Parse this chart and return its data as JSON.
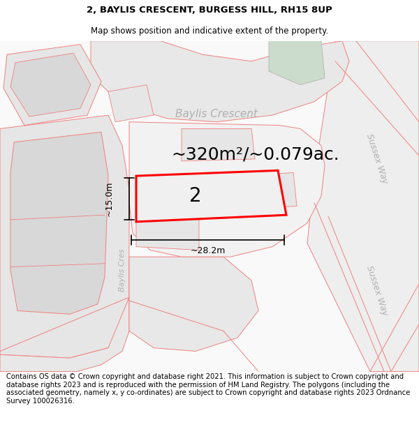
{
  "title_line1": "2, BAYLIS CRESCENT, BURGESS HILL, RH15 8UP",
  "title_line2": "Map shows position and indicative extent of the property.",
  "area_text": "~320m²/~0.079ac.",
  "width_label": "~28.2m",
  "height_label": "~15.0m",
  "number_label": "2",
  "street_label_crescent": "Baylis Crescent",
  "street_label_baylis_cres": "Baylis Cres",
  "street_label_sussex_way1": "Sussex Way",
  "street_label_sussex_way2": "Sussex Way",
  "footer_text": "Contains OS data © Crown copyright and database right 2021. This information is subject to Crown copyright and database rights 2023 and is reproduced with the permission of HM Land Registry. The polygons (including the associated geometry, namely x, y co-ordinates) are subject to Crown copyright and database rights 2023 Ordnance Survey 100026316.",
  "bg_color": "#ffffff",
  "road_fill": "#e8e8e8",
  "road_outline": "#f08080",
  "plot_fill": "#eeeeee",
  "plot_outline": "#ff0000",
  "green_fill": "#ccdccc",
  "gray_block": "#d8d8d8",
  "light_gray": "#e6e6e6",
  "title_fontsize": 9.5,
  "subtitle_fontsize": 8.5,
  "area_fontsize": 18,
  "label_fontsize": 9,
  "footer_fontsize": 7.2
}
